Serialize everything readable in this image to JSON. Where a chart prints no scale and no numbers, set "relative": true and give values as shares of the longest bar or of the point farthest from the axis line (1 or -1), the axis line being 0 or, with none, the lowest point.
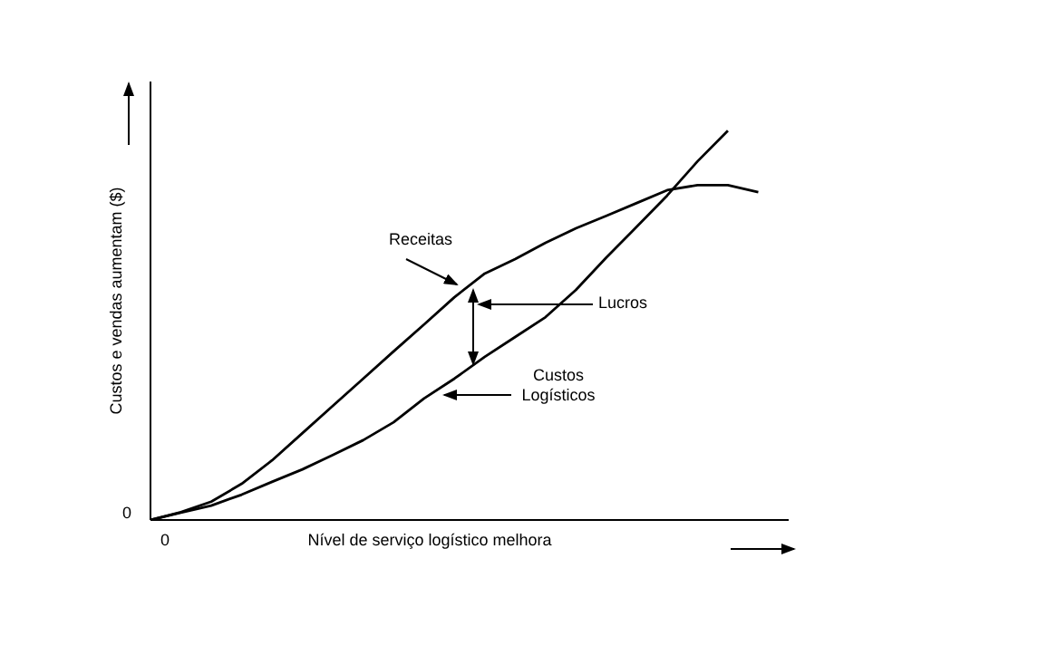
{
  "chart_data": {
    "type": "line",
    "relative": true,
    "xlabel": "Nível de serviço logístico melhora",
    "ylabel": "Custos e vendas aumentam ($)",
    "categories": [
      null,
      null,
      null,
      null,
      null,
      null,
      null,
      null,
      null,
      null,
      null,
      null,
      null,
      null,
      null,
      null,
      null,
      null,
      null,
      null,
      null
    ],
    "series": [
      {
        "color": "#000000",
        "values": [
          0,
          0.02,
          0.047,
          0.093,
          0.153,
          0.223,
          0.293,
          0.363,
          0.433,
          0.502,
          0.572,
          0.633,
          0.67,
          0.712,
          0.749,
          0.781,
          0.814,
          0.847,
          0.86,
          0.86,
          0.842
        ]
      },
      {
        "color": "#000000",
        "values": [
          0,
          0.019,
          0.037,
          0.065,
          0.098,
          0.13,
          0.167,
          0.205,
          0.251,
          0.312,
          0.363,
          0.419,
          0.47,
          0.521,
          0.591,
          0.674,
          0.753,
          0.833,
          0.921,
          1.0,
          null
        ]
      }
    ],
    "annotations": [
      "Receitas",
      "Lucros",
      "Custos\nLogísticos",
      "0",
      "0"
    ],
    "legend": false,
    "grid": false,
    "marker": "none",
    "line_style": "solid"
  }
}
